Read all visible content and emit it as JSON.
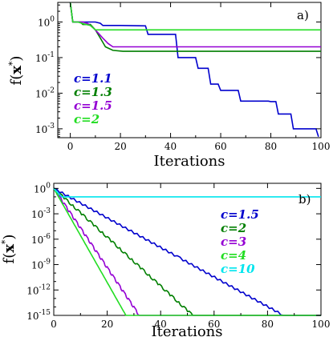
{
  "chart_data": [
    {
      "type": "line",
      "panel_label": "a)",
      "xlabel": "Iterations",
      "ylabel_main": "f(",
      "ylabel_bold": "x",
      "ylabel_sup": "*",
      "ylabel_end": ")",
      "xlim": [
        -5,
        100
      ],
      "ylim_log10": [
        -3.25,
        0.55
      ],
      "yscale": "log",
      "x_ticks": [
        0,
        20,
        40,
        60,
        80,
        100
      ],
      "x_tick_labels": [
        "0",
        "20",
        "40",
        "60",
        "80",
        "100"
      ],
      "y_ticks_log10": [
        -3,
        -2,
        -1,
        0
      ],
      "y_tick_base": "10",
      "y_tick_exponents": [
        "-3",
        "-2",
        "-1",
        "0"
      ],
      "legend_placement": "lower-left",
      "series": [
        {
          "name": "c=1.1",
          "color": "#0000cd",
          "points": [
            [
              0,
              5
            ],
            [
              1,
              1
            ],
            [
              3,
              1
            ],
            [
              4,
              1
            ],
            [
              7,
              1
            ],
            [
              10,
              1
            ],
            [
              12,
              0.92
            ],
            [
              13,
              0.8
            ],
            [
              20,
              0.8
            ],
            [
              30,
              0.78
            ],
            [
              31,
              0.45
            ],
            [
              42,
              0.45
            ],
            [
              43,
              0.1
            ],
            [
              50,
              0.1
            ],
            [
              51,
              0.05
            ],
            [
              55,
              0.05
            ],
            [
              56,
              0.018
            ],
            [
              59,
              0.018
            ],
            [
              60,
              0.012
            ],
            [
              67,
              0.012
            ],
            [
              68,
              0.006
            ],
            [
              79,
              0.006
            ],
            [
              80,
              0.0058
            ],
            [
              82,
              0.0058
            ],
            [
              83,
              0.0026
            ],
            [
              88,
              0.0026
            ],
            [
              89,
              0.001
            ],
            [
              98,
              0.001
            ],
            [
              99,
              0.0006
            ]
          ]
        },
        {
          "name": "c=1.3",
          "color": "#007f00",
          "points": [
            [
              0,
              5
            ],
            [
              1,
              1
            ],
            [
              4,
              1
            ],
            [
              5,
              0.85
            ],
            [
              8,
              0.85
            ],
            [
              10,
              0.6
            ],
            [
              12,
              0.35
            ],
            [
              14,
              0.2
            ],
            [
              17,
              0.16
            ],
            [
              21,
              0.15
            ],
            [
              100,
              0.15
            ]
          ]
        },
        {
          "name": "c=1.5",
          "color": "#9400d3",
          "points": [
            [
              0,
              5
            ],
            [
              1,
              1
            ],
            [
              5,
              1
            ],
            [
              7,
              0.9
            ],
            [
              9,
              0.7
            ],
            [
              11,
              0.5
            ],
            [
              13,
              0.35
            ],
            [
              15,
              0.25
            ],
            [
              17,
              0.2
            ],
            [
              100,
              0.2
            ]
          ]
        },
        {
          "name": "c=2",
          "color": "#22dd22",
          "points": [
            [
              0,
              5
            ],
            [
              1,
              1
            ],
            [
              3,
              1
            ],
            [
              5,
              0.9
            ],
            [
              8,
              0.8
            ],
            [
              10,
              0.6
            ],
            [
              100,
              0.6
            ]
          ]
        }
      ]
    },
    {
      "type": "line",
      "panel_label": "b)",
      "xlabel": "Iterations",
      "ylabel_main": "f(",
      "ylabel_bold": "x",
      "ylabel_sup": "*",
      "ylabel_end": ")",
      "xlim": [
        0,
        100
      ],
      "ylim_log10": [
        -15,
        0.6
      ],
      "yscale": "log",
      "x_ticks": [
        0,
        20,
        40,
        60,
        80,
        100
      ],
      "x_tick_labels": [
        "0",
        "20",
        "40",
        "60",
        "80",
        "100"
      ],
      "y_ticks_log10": [
        -15,
        -12,
        -9,
        -6,
        -3,
        0
      ],
      "y_tick_base": "10",
      "y_tick_exponents": [
        "-15",
        "-12",
        "-9",
        "-6",
        "-3",
        "0"
      ],
      "legend_placement": "right",
      "series": [
        {
          "name": "c=1.5",
          "color": "#0000cd",
          "start": [
            0,
            1
          ],
          "end": [
            86,
            1e-15
          ],
          "flat_until": 100,
          "step_period": 2.2
        },
        {
          "name": "c=2",
          "color": "#007f00",
          "start": [
            0,
            1
          ],
          "end": [
            52,
            1e-15
          ],
          "flat_until": 100,
          "step_period": 2.2
        },
        {
          "name": "c=3",
          "color": "#9400d3",
          "start": [
            0,
            1
          ],
          "end": [
            32,
            1e-15
          ],
          "flat_until": 100,
          "step_period": 2.0
        },
        {
          "name": "c=4",
          "color": "#22dd22",
          "start": [
            0,
            1
          ],
          "end": [
            27,
            1e-15
          ],
          "flat_until": 100,
          "step_period": 0
        },
        {
          "name": "c=10",
          "color": "#00e5ee",
          "start": [
            0,
            1
          ],
          "end": [
            3,
            0.1
          ],
          "flat_until": 100,
          "step_period": 0
        }
      ]
    }
  ]
}
